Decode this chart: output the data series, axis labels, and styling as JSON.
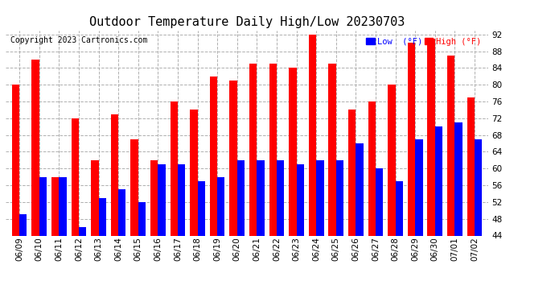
{
  "title": "Outdoor Temperature Daily High/Low 20230703",
  "copyright": "Copyright 2023 Cartronics.com",
  "legend_low": "Low  (°F)",
  "legend_high": "High (°F)",
  "ylim": [
    44.0,
    93.0
  ],
  "yticks": [
    44.0,
    48.0,
    52.0,
    56.0,
    60.0,
    64.0,
    68.0,
    72.0,
    76.0,
    80.0,
    84.0,
    88.0,
    92.0
  ],
  "dates": [
    "06/09",
    "06/10",
    "06/11",
    "06/12",
    "06/13",
    "06/14",
    "06/15",
    "06/16",
    "06/17",
    "06/18",
    "06/19",
    "06/20",
    "06/21",
    "06/22",
    "06/23",
    "06/24",
    "06/25",
    "06/26",
    "06/27",
    "06/28",
    "06/29",
    "06/30",
    "07/01",
    "07/02"
  ],
  "highs": [
    80,
    86,
    58,
    72,
    62,
    73,
    67,
    62,
    76,
    74,
    82,
    81,
    85,
    85,
    84,
    92,
    85,
    74,
    76,
    80,
    90,
    91,
    87,
    77
  ],
  "lows": [
    49,
    58,
    58,
    46,
    53,
    55,
    52,
    61,
    61,
    57,
    58,
    62,
    62,
    62,
    61,
    62,
    62,
    66,
    60,
    57,
    67,
    70,
    71,
    67
  ],
  "bar_color_high": "#ff0000",
  "bar_color_low": "#0000ff",
  "background_color": "#ffffff",
  "grid_color": "#b0b0b0",
  "title_fontsize": 11,
  "copyright_fontsize": 7,
  "tick_fontsize": 7.5,
  "bar_width": 0.38
}
